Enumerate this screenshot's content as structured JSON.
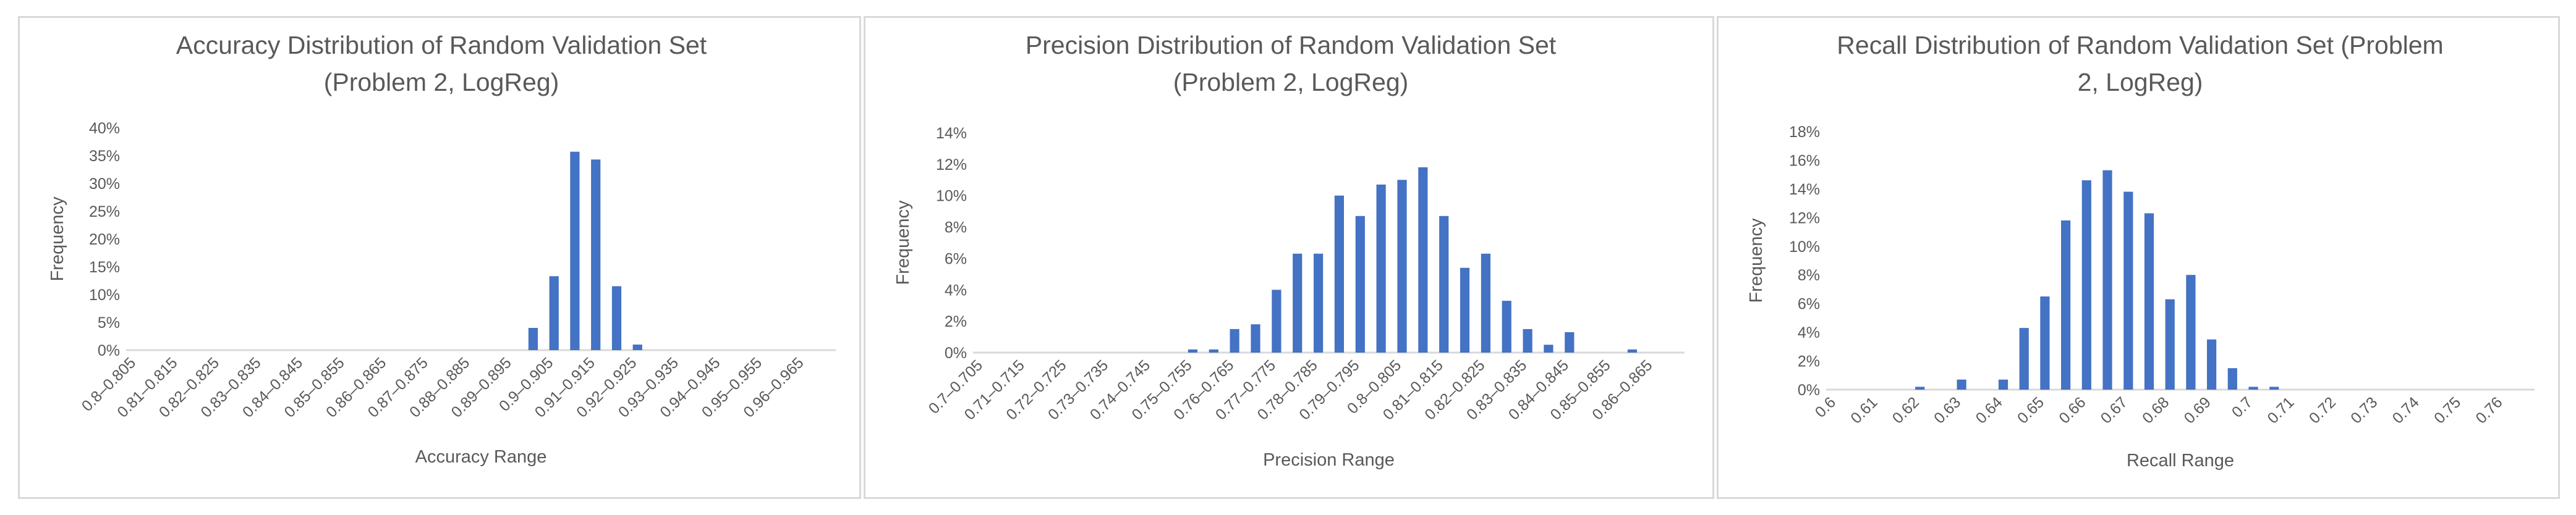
{
  "chart_data": [
    {
      "type": "bar",
      "title": "Accuracy Distribution of Random Validation Set (Problem 2, LogReg)",
      "title_lines": [
        "Accuracy Distribution of Random Validation Set",
        "(Problem 2, LogReg)"
      ],
      "xlabel": "Accuracy Range",
      "ylabel": "Frequency",
      "ylim": [
        0,
        0.4
      ],
      "yticks": [
        0,
        0.05,
        0.1,
        0.15,
        0.2,
        0.25,
        0.3,
        0.35,
        0.4
      ],
      "ytick_labels": [
        "0%",
        "5%",
        "10%",
        "15%",
        "20%",
        "25%",
        "30%",
        "35%",
        "40%"
      ],
      "categories": [
        "0.8–0.805",
        "0.805–0.81",
        "0.81–0.815",
        "0.815–0.82",
        "0.82–0.825",
        "0.825–0.83",
        "0.83–0.835",
        "0.835–0.84",
        "0.84–0.845",
        "0.845–0.85",
        "0.85–0.855",
        "0.855–0.86",
        "0.86–0.865",
        "0.865–0.87",
        "0.87–0.875",
        "0.875–0.88",
        "0.88–0.885",
        "0.885–0.89",
        "0.89–0.895",
        "0.895–0.9",
        "0.9–0.905",
        "0.905–0.91",
        "0.91–0.915",
        "0.915–0.92",
        "0.92–0.925",
        "0.925–0.93",
        "0.93–0.935",
        "0.935–0.94",
        "0.94–0.945",
        "0.945–0.95",
        "0.95–0.955",
        "0.955–0.96",
        "0.96–0.965",
        "0.965–0.97"
      ],
      "xtick_labels": [
        "0.8–0.805",
        "",
        "0.81–0.815",
        "",
        "0.82–0.825",
        "",
        "0.83–0.835",
        "",
        "0.84–0.845",
        "",
        "0.85–0.855",
        "",
        "0.86–0.865",
        "",
        "0.87–0.875",
        "",
        "0.88–0.885",
        "",
        "0.89–0.895",
        "",
        "0.9–0.905",
        "",
        "0.91–0.915",
        "",
        "0.92–0.925",
        "",
        "0.93–0.935",
        "",
        "0.94–0.945",
        "",
        "0.95–0.955",
        "",
        "0.96–0.965",
        ""
      ],
      "values": [
        0,
        0,
        0,
        0,
        0,
        0,
        0,
        0,
        0,
        0,
        0,
        0,
        0,
        0,
        0,
        0,
        0,
        0,
        0,
        0.04,
        0.133,
        0.357,
        0.343,
        0.115,
        0.01,
        0,
        0,
        0,
        0,
        0,
        0,
        0,
        0,
        0
      ],
      "color": "#4472c4"
    },
    {
      "type": "bar",
      "title": "Precision Distribution of Random Validation Set (Problem 2, LogReg)",
      "title_lines": [
        "Precision Distribution of Random Validation Set",
        "(Problem 2, LogReg)"
      ],
      "xlabel": "Precision Range",
      "ylabel": "Frequency",
      "ylim": [
        0,
        0.14
      ],
      "yticks": [
        0,
        0.02,
        0.04,
        0.06,
        0.08,
        0.1,
        0.12,
        0.14
      ],
      "ytick_labels": [
        "0%",
        "2%",
        "4%",
        "6%",
        "8%",
        "10%",
        "12%",
        "14%"
      ],
      "categories": [
        "0.7–0.705",
        "0.705–0.71",
        "0.71–0.715",
        "0.715–0.72",
        "0.72–0.725",
        "0.725–0.73",
        "0.73–0.735",
        "0.735–0.74",
        "0.74–0.745",
        "0.745–0.75",
        "0.75–0.755",
        "0.755–0.76",
        "0.76–0.765",
        "0.765–0.77",
        "0.77–0.775",
        "0.775–0.78",
        "0.78–0.785",
        "0.785–0.79",
        "0.79–0.795",
        "0.795–0.8",
        "0.8–0.805",
        "0.805–0.81",
        "0.81–0.815",
        "0.815–0.82",
        "0.82–0.825",
        "0.825–0.83",
        "0.83–0.835",
        "0.835–0.84",
        "0.84–0.845",
        "0.845–0.85",
        "0.85–0.855",
        "0.855–0.86",
        "0.86–0.865",
        "0.865–0.87"
      ],
      "xtick_labels": [
        "0.7–0.705",
        "",
        "0.71–0.715",
        "",
        "0.72–0.725",
        "",
        "0.73–0.735",
        "",
        "0.74–0.745",
        "",
        "0.75–0.755",
        "",
        "0.76–0.765",
        "",
        "0.77–0.775",
        "",
        "0.78–0.785",
        "",
        "0.79–0.795",
        "",
        "0.8–0.805",
        "",
        "0.81–0.815",
        "",
        "0.82–0.825",
        "",
        "0.83–0.835",
        "",
        "0.84–0.845",
        "",
        "0.85–0.855",
        "",
        "0.86–0.865",
        ""
      ],
      "values": [
        0,
        0,
        0,
        0,
        0,
        0,
        0,
        0,
        0,
        0,
        0.002,
        0.002,
        0.015,
        0.018,
        0.04,
        0.063,
        0.063,
        0.1,
        0.087,
        0.107,
        0.11,
        0.118,
        0.087,
        0.054,
        0.063,
        0.033,
        0.015,
        0.005,
        0.013,
        0,
        0,
        0.002,
        0,
        0
      ],
      "color": "#4472c4"
    },
    {
      "type": "bar",
      "title": "Recall Distribution of Random Validation Set (Problem 2, LogReg)",
      "title_lines": [
        "Recall Distribution of Random Validation Set (Problem",
        "2, LogReg)"
      ],
      "xlabel": "Recall Range",
      "ylabel": "Frequency",
      "ylim": [
        0,
        0.18
      ],
      "yticks": [
        0,
        0.02,
        0.04,
        0.06,
        0.08,
        0.1,
        0.12,
        0.14,
        0.16,
        0.18
      ],
      "ytick_labels": [
        "0%",
        "2%",
        "4%",
        "6%",
        "8%",
        "10%",
        "12%",
        "14%",
        "16%",
        "18%"
      ],
      "categories": [
        "0.6",
        "0.605",
        "0.61",
        "0.615",
        "0.62",
        "0.625",
        "0.63",
        "0.635",
        "0.64",
        "0.645",
        "0.65",
        "0.655",
        "0.66",
        "0.665",
        "0.67",
        "0.675",
        "0.68",
        "0.685",
        "0.69",
        "0.695",
        "0.7",
        "0.705",
        "0.71",
        "0.715",
        "0.72",
        "0.725",
        "0.73",
        "0.735",
        "0.74",
        "0.745",
        "0.75",
        "0.755",
        "0.76",
        "0.765"
      ],
      "xtick_labels": [
        "0.6",
        "",
        "0.61",
        "",
        "0.62",
        "",
        "0.63",
        "",
        "0.64",
        "",
        "0.65",
        "",
        "0.66",
        "",
        "0.67",
        "",
        "0.68",
        "",
        "0.69",
        "",
        "0.7",
        "",
        "0.71",
        "",
        "0.72",
        "",
        "0.73",
        "",
        "0.74",
        "",
        "0.75",
        "",
        "0.76",
        ""
      ],
      "values": [
        0,
        0,
        0,
        0,
        0.002,
        0,
        0.007,
        0,
        0.007,
        0.043,
        0.065,
        0.118,
        0.146,
        0.153,
        0.138,
        0.123,
        0.063,
        0.08,
        0.035,
        0.015,
        0.002,
        0.002,
        0,
        0,
        0,
        0,
        0,
        0,
        0,
        0,
        0,
        0,
        0,
        0
      ],
      "color": "#4472c4"
    }
  ]
}
